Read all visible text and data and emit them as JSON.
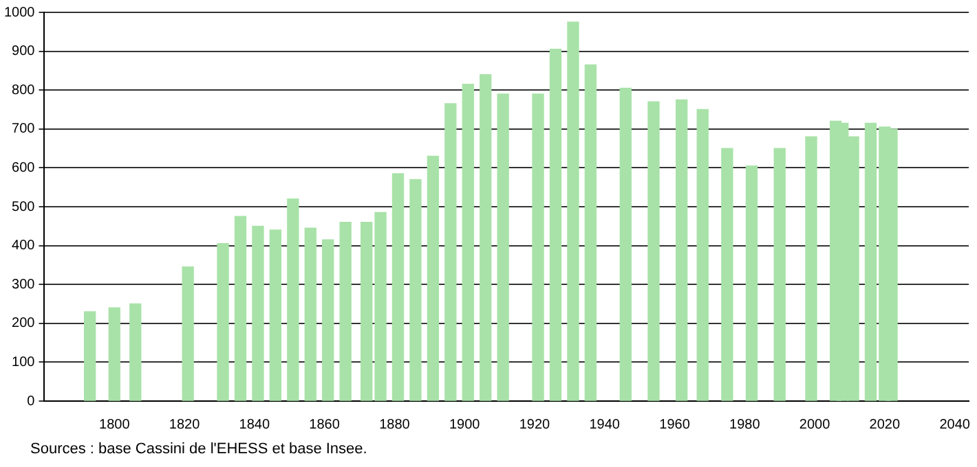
{
  "chart_data": {
    "type": "bar",
    "color": "#a8e2a8",
    "x": [
      1793,
      1800,
      1806,
      1821,
      1831,
      1836,
      1841,
      1846,
      1851,
      1856,
      1861,
      1866,
      1872,
      1876,
      1881,
      1886,
      1891,
      1896,
      1901,
      1906,
      1911,
      1921,
      1926,
      1931,
      1936,
      1946,
      1954,
      1962,
      1968,
      1975,
      1982,
      1990,
      1999,
      2006,
      2008,
      2011,
      2016,
      2020,
      2022
    ],
    "values": [
      230,
      240,
      250,
      345,
      405,
      475,
      450,
      440,
      520,
      445,
      415,
      460,
      460,
      485,
      585,
      570,
      630,
      765,
      815,
      840,
      790,
      790,
      905,
      975,
      865,
      805,
      770,
      775,
      750,
      650,
      605,
      650,
      680,
      720,
      715,
      680,
      715,
      705,
      700
    ],
    "xlim": [
      1780,
      2044
    ],
    "xticks": [
      1800,
      1820,
      1840,
      1860,
      1880,
      1900,
      1920,
      1940,
      1960,
      1980,
      2000,
      2020,
      2040
    ],
    "ylim": [
      0,
      1000
    ],
    "yticks": [
      0,
      100,
      200,
      300,
      400,
      500,
      600,
      700,
      800,
      900,
      1000
    ],
    "grid": "y",
    "legend": false,
    "annotations": [
      "Sources : base Cassini de l'EHESS et base Insee."
    ]
  }
}
